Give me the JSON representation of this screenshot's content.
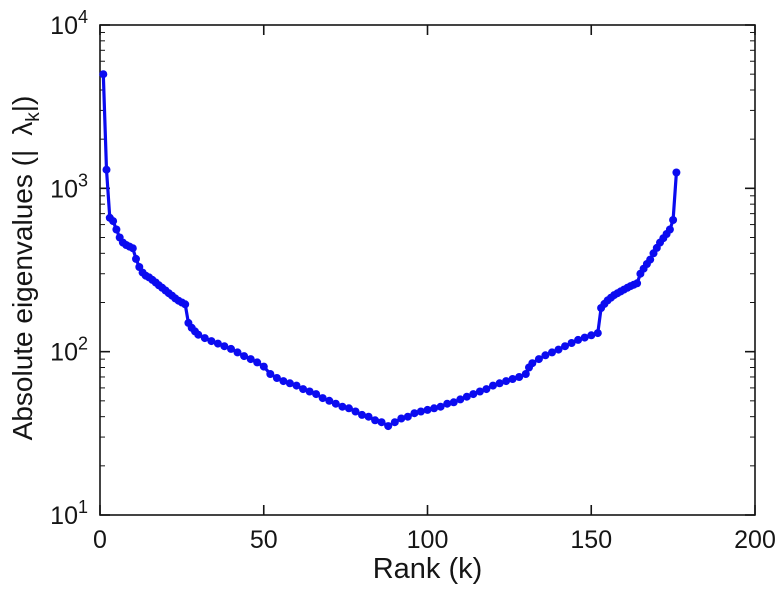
{
  "figure": {
    "background": "#ffffff",
    "xlabel": "Rank (k)",
    "ylabel_prefix": "Absolute eigenvalues (|",
    "ylabel_lambda": "λ",
    "ylabel_subscript": "k",
    "ylabel_suffix": "|)"
  },
  "chart_data": {
    "type": "line",
    "title": "",
    "xlabel": "Rank (k)",
    "ylabel": "Absolute eigenvalues (|lambda_k|)",
    "xlim": [
      0,
      200
    ],
    "ylim": [
      10,
      10000
    ],
    "yscale": "log",
    "xticks": [
      0,
      50,
      100,
      150,
      200
    ],
    "ytick_exponents": [
      1,
      2,
      3,
      4
    ],
    "grid": false,
    "legend": null,
    "line_color": "#0b0bf0",
    "marker": "circle",
    "marker_size": 4,
    "line_width": 3.2,
    "axis_color": "#151515",
    "tick_font_size": 25,
    "exponent_font_size": 18,
    "series": [
      {
        "name": "|lambda_k|",
        "points": [
          [
            1,
            5000
          ],
          [
            2,
            1300
          ],
          [
            3,
            660
          ],
          [
            4,
            630
          ],
          [
            5,
            560
          ],
          [
            6,
            500
          ],
          [
            7,
            465
          ],
          [
            8,
            450
          ],
          [
            9,
            440
          ],
          [
            10,
            430
          ],
          [
            11,
            370
          ],
          [
            12,
            330
          ],
          [
            13,
            305
          ],
          [
            14,
            292
          ],
          [
            15,
            285
          ],
          [
            16,
            275
          ],
          [
            17,
            265
          ],
          [
            18,
            255
          ],
          [
            19,
            246
          ],
          [
            20,
            237
          ],
          [
            21,
            228
          ],
          [
            22,
            220
          ],
          [
            23,
            212
          ],
          [
            24,
            205
          ],
          [
            25,
            200
          ],
          [
            26,
            195
          ],
          [
            27,
            150
          ],
          [
            28,
            140
          ],
          [
            29,
            133
          ],
          [
            30,
            127
          ],
          [
            32,
            121
          ],
          [
            34,
            116
          ],
          [
            36,
            112
          ],
          [
            38,
            108
          ],
          [
            40,
            104
          ],
          [
            42,
            99
          ],
          [
            44,
            94
          ],
          [
            46,
            90
          ],
          [
            48,
            86
          ],
          [
            50,
            81
          ],
          [
            52,
            73
          ],
          [
            54,
            69
          ],
          [
            56,
            66
          ],
          [
            58,
            64
          ],
          [
            60,
            62
          ],
          [
            62,
            59
          ],
          [
            64,
            57
          ],
          [
            66,
            55
          ],
          [
            68,
            52
          ],
          [
            70,
            50
          ],
          [
            72,
            48
          ],
          [
            74,
            46
          ],
          [
            76,
            45
          ],
          [
            78,
            43
          ],
          [
            80,
            41
          ],
          [
            82,
            40
          ],
          [
            84,
            38
          ],
          [
            86,
            37
          ],
          [
            88,
            35
          ],
          [
            90,
            37
          ],
          [
            92,
            39
          ],
          [
            94,
            40
          ],
          [
            96,
            42
          ],
          [
            98,
            43
          ],
          [
            100,
            44
          ],
          [
            102,
            45
          ],
          [
            104,
            46
          ],
          [
            106,
            48
          ],
          [
            108,
            49
          ],
          [
            110,
            51
          ],
          [
            112,
            53
          ],
          [
            114,
            55
          ],
          [
            116,
            57
          ],
          [
            118,
            59
          ],
          [
            120,
            62
          ],
          [
            122,
            64
          ],
          [
            124,
            66
          ],
          [
            126,
            68
          ],
          [
            128,
            70
          ],
          [
            130,
            73
          ],
          [
            131,
            80
          ],
          [
            132,
            85
          ],
          [
            134,
            90
          ],
          [
            136,
            95
          ],
          [
            138,
            99
          ],
          [
            140,
            103
          ],
          [
            142,
            108
          ],
          [
            144,
            113
          ],
          [
            146,
            118
          ],
          [
            148,
            122
          ],
          [
            150,
            126
          ],
          [
            152,
            130
          ],
          [
            153,
            185
          ],
          [
            154,
            196
          ],
          [
            155,
            206
          ],
          [
            156,
            214
          ],
          [
            157,
            222
          ],
          [
            158,
            228
          ],
          [
            159,
            234
          ],
          [
            160,
            240
          ],
          [
            161,
            246
          ],
          [
            162,
            252
          ],
          [
            163,
            257
          ],
          [
            164,
            262
          ],
          [
            165,
            300
          ],
          [
            166,
            322
          ],
          [
            167,
            344
          ],
          [
            168,
            366
          ],
          [
            169,
            400
          ],
          [
            170,
            432
          ],
          [
            171,
            465
          ],
          [
            172,
            495
          ],
          [
            173,
            525
          ],
          [
            174,
            560
          ],
          [
            175,
            640
          ],
          [
            176,
            1250
          ]
        ]
      }
    ]
  }
}
